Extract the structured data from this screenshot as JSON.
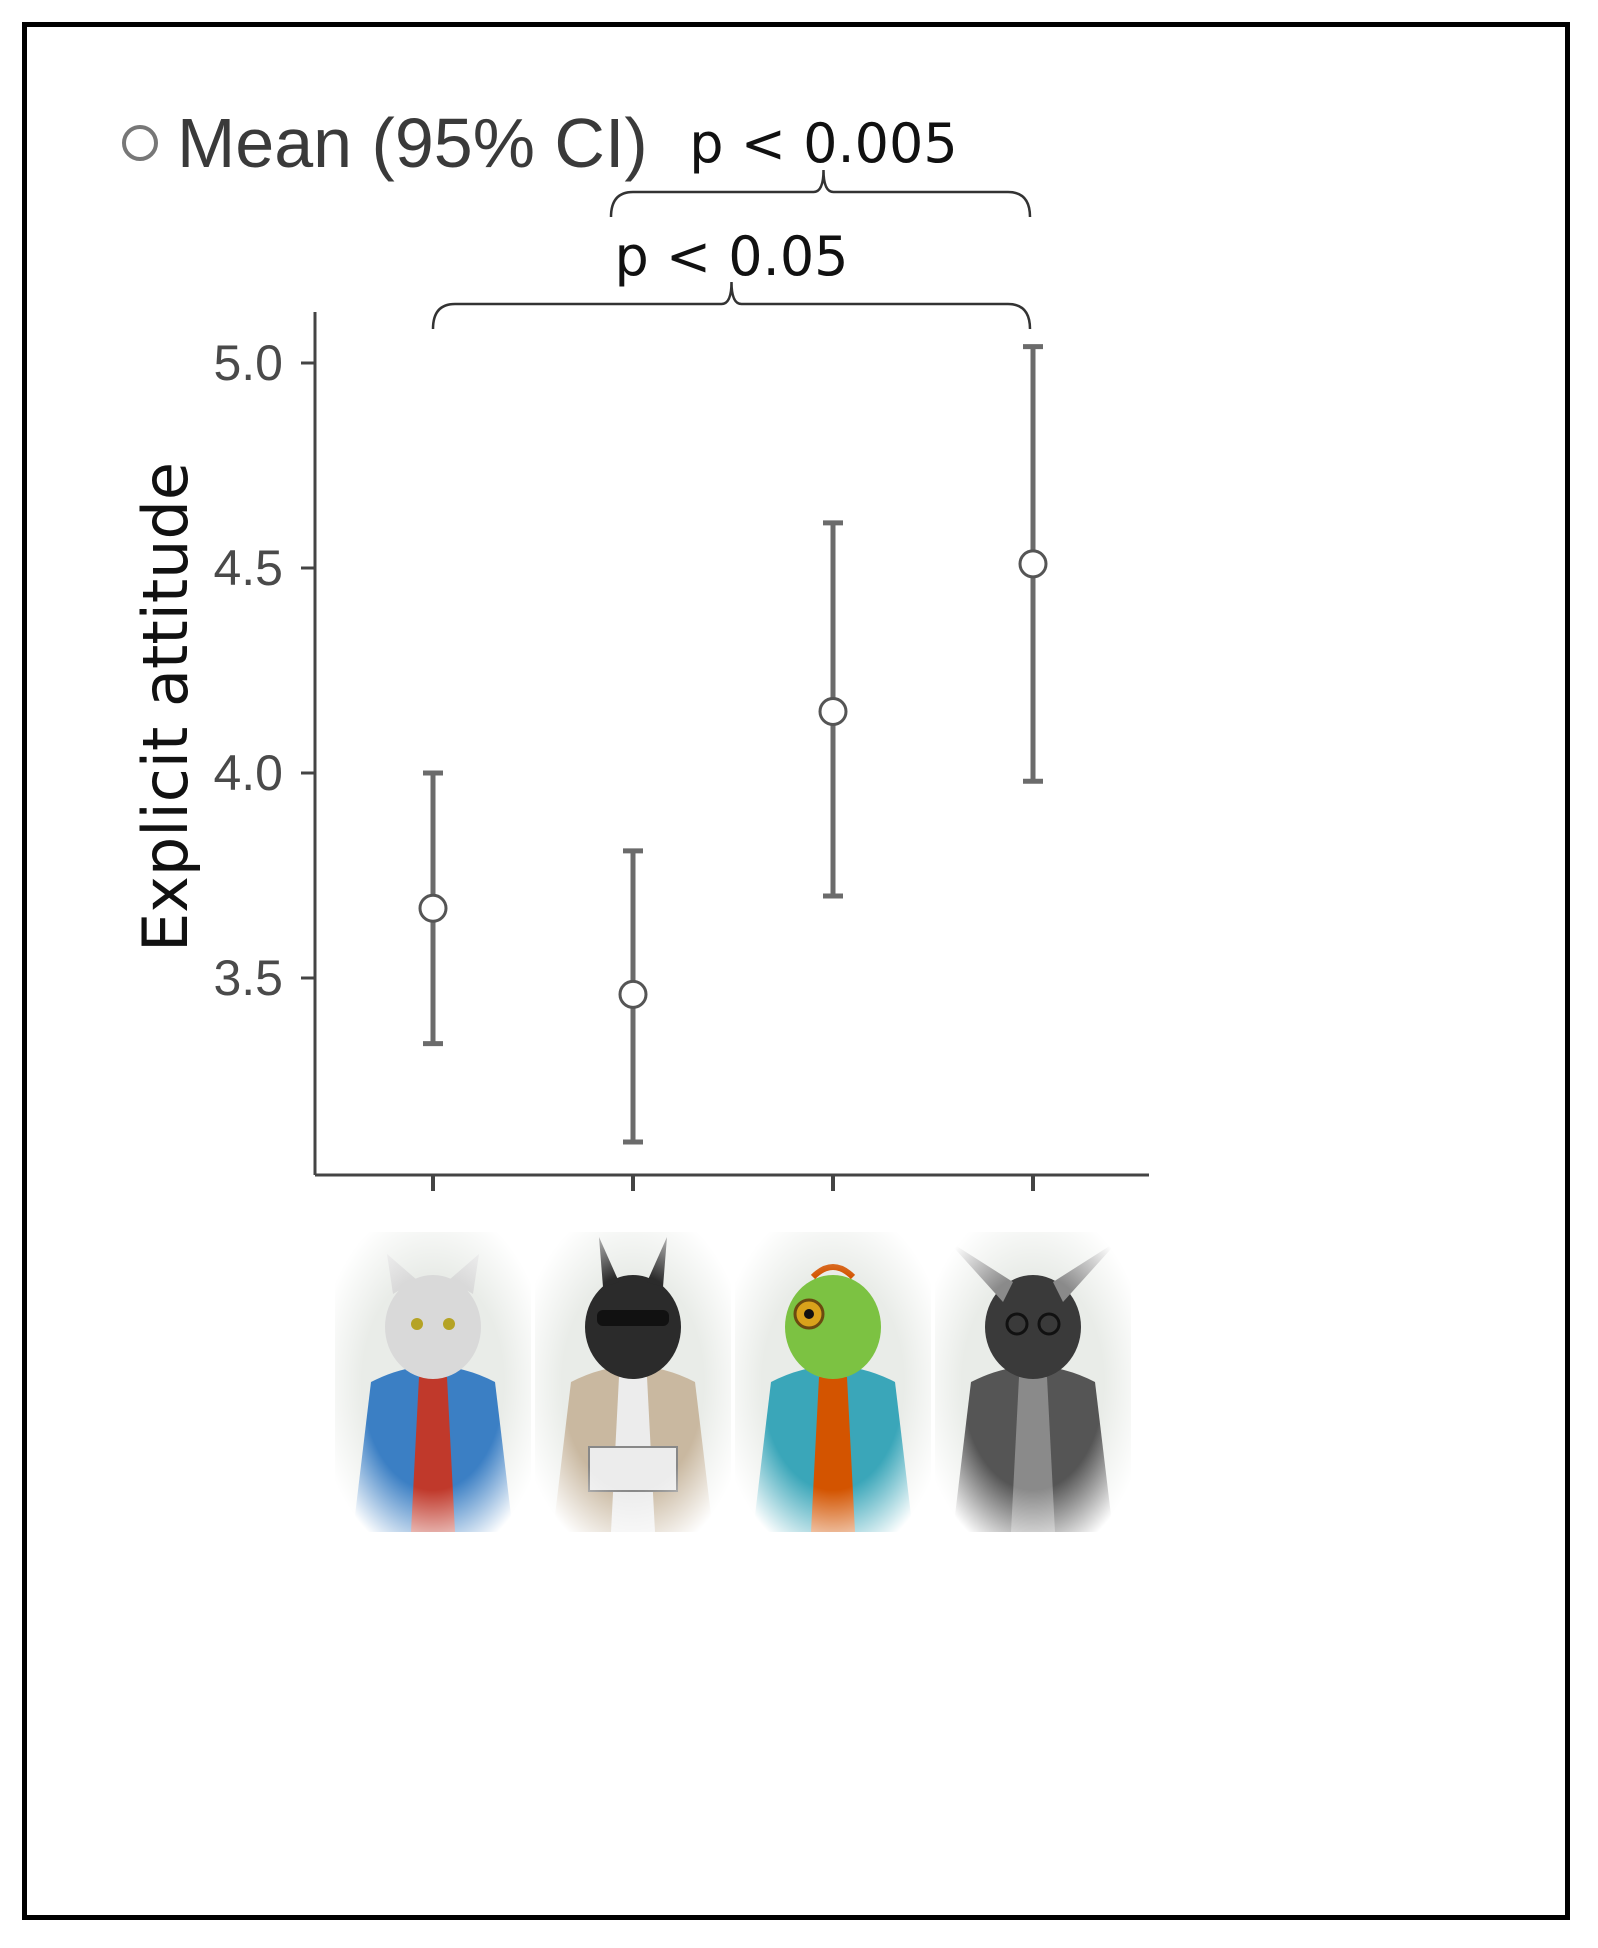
{
  "chart_data": {
    "type": "scatter",
    "title": "",
    "xlabel": "",
    "ylabel": "Explicit attitude",
    "ylim": [
      3.0,
      5.1
    ],
    "yticks": [
      "3.5",
      "4.0",
      "4.5",
      "5.0"
    ],
    "grid": false,
    "legend": {
      "label": "Mean (95% CI)",
      "placement": "top-left"
    },
    "categories": [
      "cat",
      "llama",
      "lizard",
      "bat"
    ],
    "series": [
      {
        "name": "Mean (95% CI)",
        "means": [
          3.67,
          3.46,
          4.15,
          4.51
        ],
        "ci_low": [
          3.34,
          3.1,
          3.7,
          3.98
        ],
        "ci_high": [
          4.0,
          3.81,
          4.61,
          5.04
        ]
      }
    ],
    "annotations": [
      {
        "label": "p < 0.005",
        "from": 1,
        "to": 3
      },
      {
        "label": "p < 0.05",
        "from": 0,
        "to": 3
      }
    ],
    "x_axis_images": [
      {
        "icon": "cat-character-icon",
        "colors": [
          "#3b7fc4",
          "#d9d9d9",
          "#c0392b"
        ]
      },
      {
        "icon": "llama-character-icon",
        "colors": [
          "#c9b8a0",
          "#2b2b2b",
          "#ececec"
        ]
      },
      {
        "icon": "lizard-character-icon",
        "colors": [
          "#3aa6b9",
          "#7cc242",
          "#d35400"
        ]
      },
      {
        "icon": "bat-character-icon",
        "colors": [
          "#555555",
          "#3a3a3a",
          "#8a8a8a"
        ]
      }
    ],
    "colors": {
      "errorbar": "#6b6b6b",
      "axis": "#444444",
      "marker_fill": "#ffffff"
    }
  }
}
